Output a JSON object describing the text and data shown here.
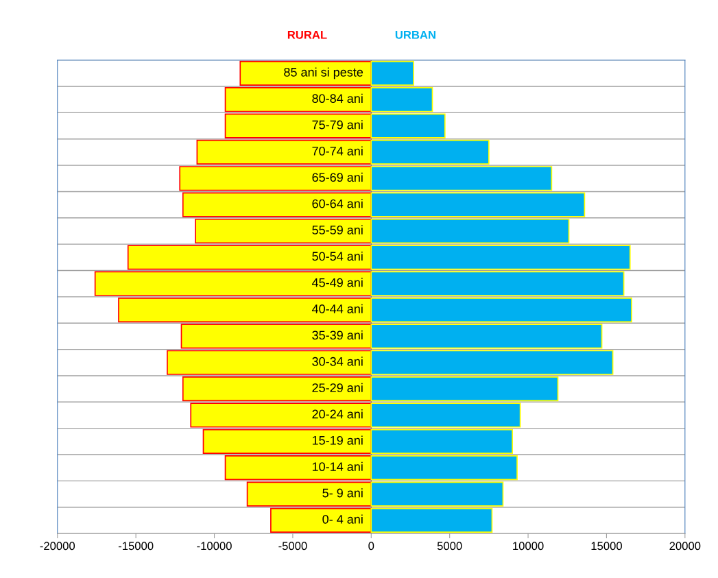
{
  "chart_data": {
    "type": "bar",
    "orientation": "horizontal",
    "stacked": true,
    "categories": [
      "85 ani si peste",
      "80-84 ani",
      "75-79 ani",
      "70-74 ani",
      "65-69 ani",
      "60-64 ani",
      "55-59 ani",
      "50-54 ani",
      "45-49 ani",
      "40-44 ani",
      "35-39 ani",
      "30-34 ani",
      "25-29 ani",
      "20-24 ani",
      "15-19 ani",
      "10-14 ani",
      "5- 9 ani",
      "0- 4 ani"
    ],
    "series": [
      {
        "name": "RURAL",
        "color": "#ffff00",
        "values": [
          -8350,
          -9300,
          -9300,
          -11100,
          -12200,
          -12000,
          -11200,
          -15500,
          -17600,
          -16100,
          -12100,
          -13000,
          -12000,
          -11500,
          -10700,
          -9300,
          -7900,
          -6400
        ]
      },
      {
        "name": "URBAN",
        "color": "#00b0f0",
        "values": [
          2700,
          3900,
          4700,
          7500,
          11500,
          13600,
          12600,
          16500,
          16100,
          16600,
          14700,
          15400,
          11900,
          9500,
          9000,
          9300,
          8400,
          7700
        ]
      }
    ],
    "xlim": [
      -20000,
      20000
    ],
    "xticks": [
      -20000,
      -15000,
      -10000,
      -5000,
      0,
      5000,
      10000,
      15000,
      20000
    ],
    "grid": "y",
    "legend": "top"
  }
}
